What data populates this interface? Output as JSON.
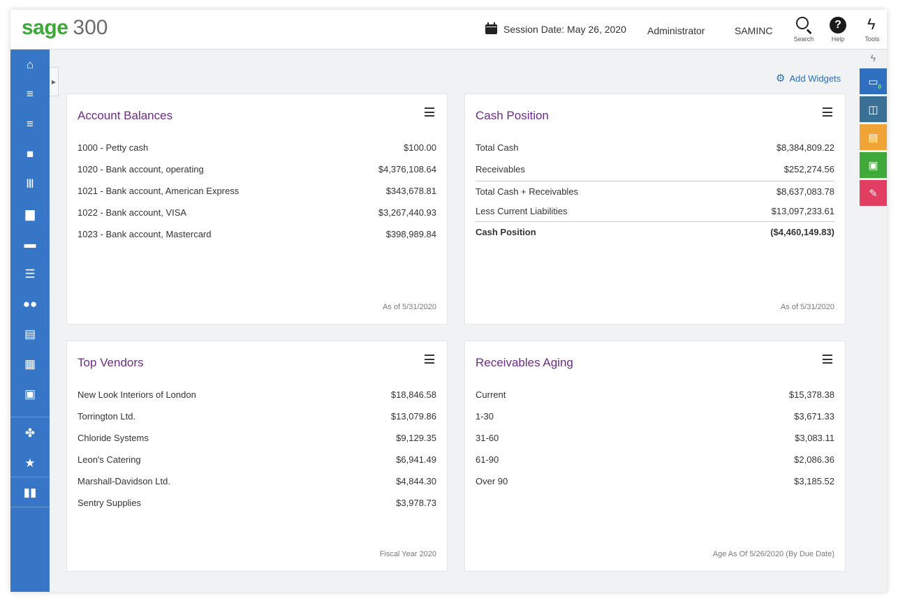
{
  "header": {
    "brand": "sage",
    "product": "300",
    "session_date": "Session Date:  May 26, 2020",
    "user": "Administrator",
    "company": "SAMINC",
    "search_label": "Search",
    "help_label": "Help",
    "tools_label": "Tools"
  },
  "left_nav": {
    "items": [
      {
        "icon": "home-icon",
        "glyph": "⌂"
      },
      {
        "icon": "receivables-icon",
        "glyph": "≡"
      },
      {
        "icon": "payables-icon",
        "glyph": "≡"
      },
      {
        "icon": "lock-icon",
        "glyph": "🔒"
      },
      {
        "icon": "bank-icon",
        "glyph": "🏛"
      },
      {
        "icon": "briefcase-icon",
        "glyph": "💼"
      },
      {
        "icon": "folder-icon",
        "glyph": "▬"
      },
      {
        "icon": "inventory-icon",
        "glyph": "☰"
      },
      {
        "icon": "users-icon",
        "glyph": "👥"
      },
      {
        "icon": "document-icon",
        "glyph": "▤"
      },
      {
        "icon": "spreadsheet-icon",
        "glyph": "▦"
      },
      {
        "icon": "percent-icon",
        "glyph": "%"
      },
      {
        "icon": "maple-leaf-icon",
        "glyph": "✤"
      },
      {
        "icon": "star-icon",
        "glyph": "★"
      },
      {
        "icon": "bar-chart-icon",
        "glyph": "▮"
      }
    ]
  },
  "right_rail": {
    "items": [
      {
        "icon": "window-icon",
        "color": "#2f6fbf",
        "badge": "0"
      },
      {
        "icon": "window-clock-icon",
        "color": "#3a6f96",
        "badge": ""
      },
      {
        "icon": "report-icon",
        "color": "#f0a436",
        "badge": ""
      },
      {
        "icon": "search-document-icon",
        "color": "#3faa3a",
        "badge": ""
      },
      {
        "icon": "pen-icon",
        "color": "#e13e62",
        "badge": ""
      }
    ]
  },
  "add_widgets_label": "Add Widgets",
  "widgets": {
    "account_balances": {
      "title": "Account Balances",
      "rows": [
        {
          "label": "1000 - Petty cash",
          "value": "$100.00"
        },
        {
          "label": "1020 - Bank account, operating",
          "value": "$4,376,108.64"
        },
        {
          "label": "1021 - Bank account, American Express",
          "value": "$343,678.81"
        },
        {
          "label": "1022 - Bank account, VISA",
          "value": "$3,267,440.93"
        },
        {
          "label": "1023 - Bank account, Mastercard",
          "value": "$398,989.84"
        }
      ],
      "footer": "As of 5/31/2020"
    },
    "cash_position": {
      "title": "Cash Position",
      "rows": [
        {
          "label": "Total Cash",
          "value": "$8,384,809.22"
        },
        {
          "label": "Receivables",
          "value": "$252,274.56"
        },
        {
          "label": "Total Cash + Receivables",
          "value": "$8,637,083.78"
        },
        {
          "label": "Less Current Liabilities",
          "value": "$13,097,233.61"
        },
        {
          "label": "Cash Position",
          "value": "($4,460,149.83)"
        }
      ],
      "footer": "As of 5/31/2020"
    },
    "top_vendors": {
      "title": "Top Vendors",
      "rows": [
        {
          "label": "New Look Interiors of London",
          "value": "$18,846.58"
        },
        {
          "label": "Torrington Ltd.",
          "value": "$13,079.86"
        },
        {
          "label": "Chloride Systems",
          "value": "$9,129.35"
        },
        {
          "label": "Leon's Catering",
          "value": "$6,941.49"
        },
        {
          "label": "Marshall-Davidson Ltd.",
          "value": "$4,844.30"
        },
        {
          "label": "Sentry Supplies",
          "value": "$3,978.73"
        }
      ],
      "footer": "Fiscal Year 2020"
    },
    "receivables_aging": {
      "title": "Receivables Aging",
      "rows": [
        {
          "label": "Current",
          "value": "$15,378.38"
        },
        {
          "label": "1-30",
          "value": "$3,671.33"
        },
        {
          "label": "31-60",
          "value": "$3,083.11"
        },
        {
          "label": "61-90",
          "value": "$2,086.36"
        },
        {
          "label": "Over 90",
          "value": "$3,185.52"
        }
      ],
      "footer": "Age As Of 5/26/2020 (By Due Date)"
    }
  }
}
